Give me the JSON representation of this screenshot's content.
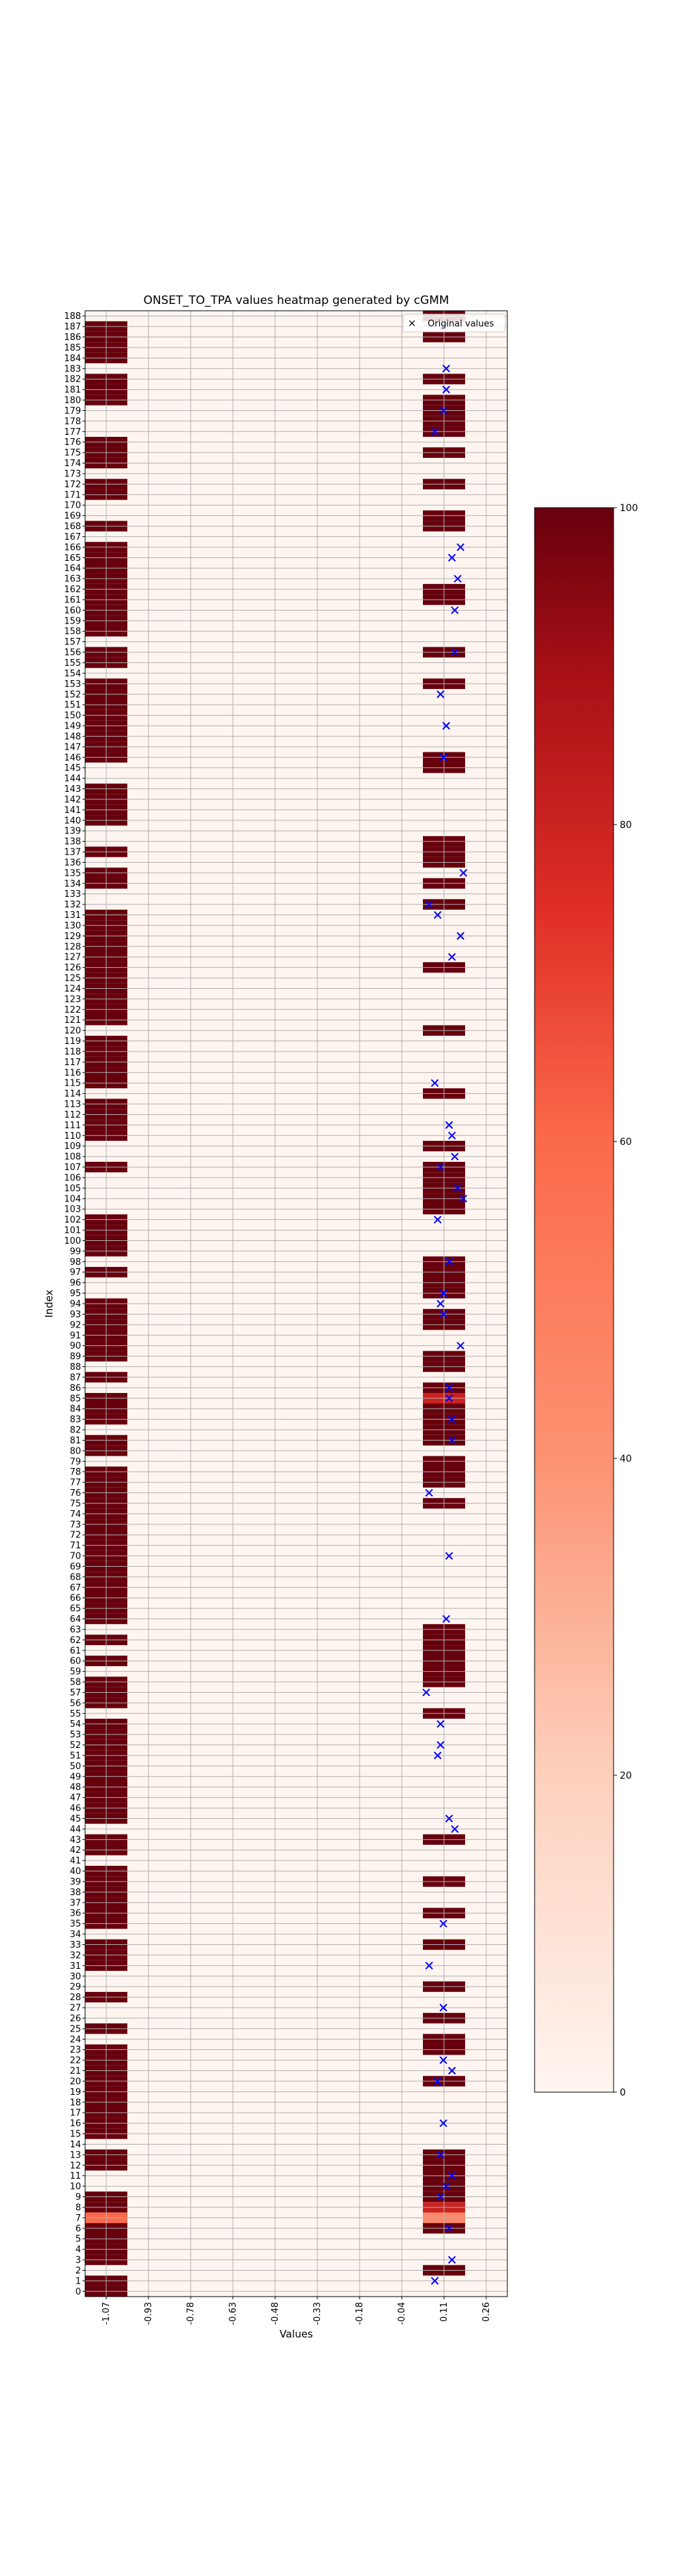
{
  "chart_data": {
    "type": "heatmap",
    "title": "ONSET_TO_TPA values heatmap generated by cGMM",
    "xlabel": "Values",
    "ylabel": "Index",
    "x_tick_labels": [
      "-1.07",
      "-0.93",
      "-0.78",
      "-0.63",
      "-0.48",
      "-0.33",
      "-0.18",
      "-0.04",
      "0.11",
      "0.26"
    ],
    "y_range": [
      0,
      188
    ],
    "colorbar": {
      "min": 0,
      "max": 100,
      "ticks": [
        "0",
        "20",
        "40",
        "60",
        "80",
        "100"
      ]
    },
    "legend": {
      "label": "Original values",
      "position": "top-right"
    },
    "colors": {
      "low": "#fff5f0",
      "high": "#67000d",
      "marker": "#0000ff"
    },
    "rows_left_high": [
      0,
      1,
      3,
      4,
      5,
      6,
      8,
      9,
      12,
      13,
      15,
      16,
      17,
      18,
      19,
      20,
      21,
      22,
      23,
      25,
      28,
      31,
      32,
      33,
      35,
      36,
      37,
      38,
      39,
      40,
      42,
      43,
      45,
      46,
      47,
      48,
      49,
      50,
      51,
      52,
      53,
      54,
      56,
      57,
      58,
      60,
      62,
      64,
      65,
      66,
      67,
      68,
      69,
      70,
      71,
      72,
      73,
      74,
      75,
      76,
      77,
      78,
      80,
      81,
      83,
      84,
      85,
      87,
      89,
      90,
      91,
      92,
      93,
      94,
      97,
      99,
      100,
      101,
      102,
      107,
      110,
      111,
      112,
      113,
      115,
      116,
      117,
      118,
      119,
      121,
      122,
      123,
      124,
      125,
      126,
      127,
      128,
      129,
      130,
      131,
      134,
      135,
      137,
      140,
      141,
      142,
      143,
      146,
      147,
      148,
      149,
      150,
      151,
      152,
      153,
      155,
      156,
      158,
      159,
      160,
      161,
      162,
      163,
      164,
      165,
      166,
      168,
      171,
      172,
      174,
      175,
      176,
      180,
      181,
      182,
      184,
      185,
      186,
      187
    ],
    "rows_left_mid": [
      {
        "row": 7,
        "value": 60
      }
    ],
    "rows_right_high": [
      2,
      6,
      9,
      10,
      11,
      12,
      13,
      20,
      23,
      24,
      26,
      29,
      33,
      36,
      39,
      43,
      55,
      58,
      59,
      60,
      61,
      62,
      63,
      75,
      77,
      78,
      79,
      81,
      82,
      83,
      84,
      85,
      86,
      88,
      89,
      92,
      93,
      95,
      96,
      97,
      98,
      103,
      104,
      105,
      106,
      107,
      109,
      114,
      120,
      126,
      132,
      134,
      136,
      137,
      138,
      145,
      146,
      153,
      156,
      161,
      162,
      168,
      169,
      172,
      175,
      177,
      178,
      179,
      180,
      182,
      186,
      188
    ],
    "rows_right_mid": [
      {
        "row": 7,
        "value": 45
      },
      {
        "row": 8,
        "value": 80
      },
      {
        "row": 85,
        "value": 80
      }
    ],
    "original_values": [
      {
        "index": 1,
        "x": 0.08
      },
      {
        "index": 3,
        "x": 0.14
      },
      {
        "index": 6,
        "x": 0.13
      },
      {
        "index": 9,
        "x": 0.1
      },
      {
        "index": 10,
        "x": 0.12
      },
      {
        "index": 11,
        "x": 0.14
      },
      {
        "index": 13,
        "x": 0.1
      },
      {
        "index": 16,
        "x": 0.11
      },
      {
        "index": 20,
        "x": 0.09
      },
      {
        "index": 21,
        "x": 0.14
      },
      {
        "index": 22,
        "x": 0.11
      },
      {
        "index": 27,
        "x": 0.11
      },
      {
        "index": 31,
        "x": 0.06
      },
      {
        "index": 35,
        "x": 0.11
      },
      {
        "index": 44,
        "x": 0.15
      },
      {
        "index": 45,
        "x": 0.13
      },
      {
        "index": 51,
        "x": 0.09
      },
      {
        "index": 52,
        "x": 0.1
      },
      {
        "index": 54,
        "x": 0.1
      },
      {
        "index": 57,
        "x": 0.05
      },
      {
        "index": 64,
        "x": 0.12
      },
      {
        "index": 70,
        "x": 0.13
      },
      {
        "index": 76,
        "x": 0.06
      },
      {
        "index": 81,
        "x": 0.14
      },
      {
        "index": 83,
        "x": 0.14
      },
      {
        "index": 85,
        "x": 0.13
      },
      {
        "index": 86,
        "x": 0.13
      },
      {
        "index": 90,
        "x": 0.17
      },
      {
        "index": 93,
        "x": 0.11
      },
      {
        "index": 94,
        "x": 0.1
      },
      {
        "index": 95,
        "x": 0.11
      },
      {
        "index": 98,
        "x": 0.13
      },
      {
        "index": 102,
        "x": 0.09
      },
      {
        "index": 104,
        "x": 0.18
      },
      {
        "index": 105,
        "x": 0.16
      },
      {
        "index": 107,
        "x": 0.1
      },
      {
        "index": 108,
        "x": 0.15
      },
      {
        "index": 110,
        "x": 0.14
      },
      {
        "index": 111,
        "x": 0.13
      },
      {
        "index": 115,
        "x": 0.08
      },
      {
        "index": 127,
        "x": 0.14
      },
      {
        "index": 129,
        "x": 0.17
      },
      {
        "index": 131,
        "x": 0.09
      },
      {
        "index": 132,
        "x": 0.06
      },
      {
        "index": 135,
        "x": 0.18
      },
      {
        "index": 146,
        "x": 0.11
      },
      {
        "index": 149,
        "x": 0.12
      },
      {
        "index": 152,
        "x": 0.1
      },
      {
        "index": 156,
        "x": 0.15
      },
      {
        "index": 160,
        "x": 0.15
      },
      {
        "index": 163,
        "x": 0.16
      },
      {
        "index": 165,
        "x": 0.14
      },
      {
        "index": 166,
        "x": 0.17
      },
      {
        "index": 177,
        "x": 0.08
      },
      {
        "index": 179,
        "x": 0.11
      },
      {
        "index": 181,
        "x": 0.12
      },
      {
        "index": 183,
        "x": 0.12
      },
      {
        "index": 187,
        "x": 0.11
      }
    ]
  }
}
